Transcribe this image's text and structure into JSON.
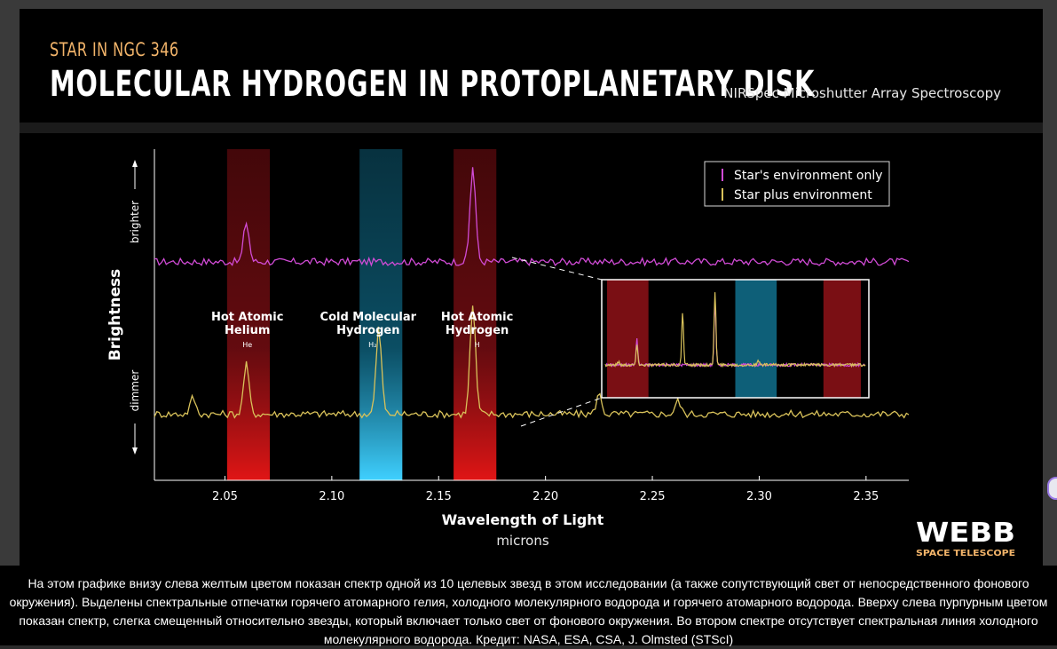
{
  "header": {
    "subtitle": "STAR IN NGC 346",
    "title": "MOLECULAR HYDROGEN IN PROTOPLANETARY DISK",
    "instrument": "NIRSpec Microshutter Array Spectroscopy"
  },
  "colors": {
    "magenta": "#d14bd6",
    "yellow": "#d9c25a",
    "red_band": "#b01818",
    "blue_band": "#1aa3d4",
    "subtitle": "#f2b46a"
  },
  "logo": {
    "name": "WEBB",
    "tagline": "SPACE TELESCOPE"
  },
  "caption": "На этом графике внизу слева желтым цветом показан спектр одной из 10 целевых звезд в этом исследовании (а также сопутствующий свет от непосредственного фонового окружения). Выделены спектральные отпечатки горячего атомарного гелия, холодного молекулярного водорода и горячего атомарного водорода. Вверху слева пурпурным цветом показан спектр, слегка смещенный относительно звезды, который включает только свет от фонового окружения. Во втором спектре отсутствует спектральная линия холодного молекулярного водорода. Кредит: NASA, ESA, CSA, J. Olmsted (STScI)",
  "chart_data": {
    "type": "line",
    "xlabel": "Wavelength of Light",
    "xunit": "microns",
    "ylabel": "Brightness",
    "y_up_label": "brighter",
    "y_down_label": "dimmer",
    "xlim": [
      2.017,
      2.37
    ],
    "ylim": [
      0,
      10
    ],
    "xticks": [
      "2.05",
      "2.10",
      "2.15",
      "2.20",
      "2.25",
      "2.30",
      "2.35"
    ],
    "bands": [
      {
        "name": "Hot Atomic Helium",
        "line1": "Hot Atomic",
        "line2": "Helium",
        "symbol": "He",
        "from": 2.051,
        "to": 2.071,
        "color": "red"
      },
      {
        "name": "Cold Molecular Hydrogen",
        "line1": "Cold Molecular",
        "line2": "Hydrogen",
        "symbol": "H₂",
        "from": 2.113,
        "to": 2.133,
        "color": "blue"
      },
      {
        "name": "Hot Atomic Hydrogen",
        "line1": "Hot Atomic",
        "line2": "Hydrogen",
        "symbol": "H",
        "from": 2.157,
        "to": 2.177,
        "color": "red"
      }
    ],
    "series": [
      {
        "name": "Star's environment only",
        "color": "magenta",
        "baseline": 6.6,
        "peaks": [
          {
            "x": 2.06,
            "h": 1.2
          },
          {
            "x": 2.166,
            "h": 2.9
          }
        ]
      },
      {
        "name": "Star plus environment",
        "color": "yellow",
        "baseline": 2.0,
        "peaks": [
          {
            "x": 2.035,
            "h": 0.5
          },
          {
            "x": 2.06,
            "h": 1.5
          },
          {
            "x": 2.122,
            "h": 2.6
          },
          {
            "x": 2.166,
            "h": 3.3
          },
          {
            "x": 2.225,
            "h": 0.6
          },
          {
            "x": 2.262,
            "h": 0.4
          }
        ]
      }
    ],
    "legend": [
      "Star's environment only",
      "Star plus environment"
    ],
    "legend_position": "top-right",
    "inset": {
      "description": "zoomed region",
      "x_from": 2.19,
      "x_to": 2.37
    }
  }
}
